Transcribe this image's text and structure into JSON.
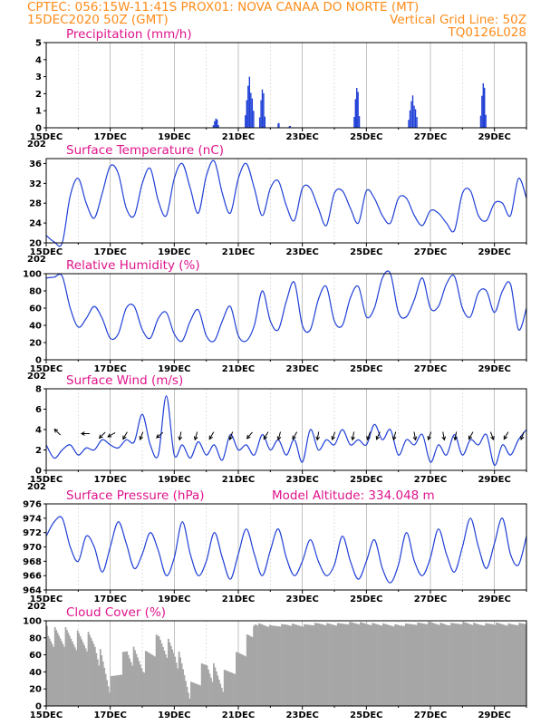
{
  "header": {
    "line1": "CPTEC:  056:15W-11:41S   PROX01: NOVA CANAA DO NORTE (MT)",
    "line2_left": "15DEC2020 50Z (GMT)",
    "line2_right": "Vertical Grid Line: 50Z",
    "line3_right": "TQ0126L028"
  },
  "x_axis": {
    "start_hour_label": "15DEC",
    "tick_labels": [
      "15DEC",
      "17DEC",
      "19DEC",
      "21DEC",
      "23DEC",
      "25DEC",
      "27DEC",
      "29DEC"
    ],
    "year_fragment": "202"
  },
  "colors": {
    "header": "#ff8c1a",
    "title": "#e0148c",
    "line": "#1f3fd6",
    "cloud": "#a6a6a6",
    "arrow": "#000000"
  },
  "chart_data": [
    {
      "type": "bar",
      "title": "Precipitation (mm/h)",
      "ylim": [
        0,
        5
      ],
      "yticks": [
        0,
        1,
        2,
        3,
        4,
        5
      ],
      "days": [
        15,
        30
      ],
      "bursts": [
        {
          "day": 17.0,
          "width": 0.05,
          "peak": 0.1
        },
        {
          "day": 20.3,
          "width": 0.2,
          "peak": 0.6
        },
        {
          "day": 21.35,
          "width": 0.3,
          "peak": 3.0
        },
        {
          "day": 21.75,
          "width": 0.2,
          "peak": 2.5
        },
        {
          "day": 22.25,
          "width": 0.05,
          "peak": 1.0
        },
        {
          "day": 22.6,
          "width": 0.05,
          "peak": 0.4
        },
        {
          "day": 24.7,
          "width": 0.2,
          "peak": 2.6
        },
        {
          "day": 26.45,
          "width": 0.3,
          "peak": 1.9
        },
        {
          "day": 28.65,
          "width": 0.2,
          "peak": 2.9
        }
      ]
    },
    {
      "type": "line",
      "title": "Surface Temperature (nC)",
      "ylim": [
        20,
        37
      ],
      "yticks": [
        20,
        24,
        28,
        32,
        36
      ],
      "x": [
        15.0,
        15.25,
        15.5,
        15.75,
        16.0,
        16.25,
        16.5,
        16.75,
        17.0,
        17.25,
        17.5,
        17.75,
        18.0,
        18.25,
        18.5,
        18.75,
        19.0,
        19.25,
        19.5,
        19.75,
        20.0,
        20.25,
        20.5,
        20.75,
        21.0,
        21.25,
        21.5,
        21.75,
        22.0,
        22.25,
        22.5,
        22.75,
        23.0,
        23.25,
        23.5,
        23.75,
        24.0,
        24.25,
        24.5,
        24.75,
        25.0,
        25.25,
        25.5,
        25.75,
        26.0,
        26.25,
        26.5,
        26.75,
        27.0,
        27.25,
        27.5,
        27.75,
        28.0,
        28.25,
        28.5,
        28.75,
        29.0,
        29.25,
        29.5,
        29.75,
        30.0
      ],
      "values": [
        21.5,
        20.2,
        20.0,
        29.5,
        33.0,
        28.0,
        25.0,
        30.0,
        35.5,
        34.0,
        27.0,
        25.5,
        32.0,
        35.0,
        28.5,
        25.5,
        33.0,
        36.0,
        31.0,
        26.0,
        33.5,
        36.5,
        30.0,
        26.0,
        33.0,
        36.0,
        31.0,
        25.5,
        31.0,
        32.5,
        27.5,
        24.5,
        31.0,
        31.0,
        27.0,
        23.5,
        30.0,
        30.5,
        27.0,
        24.0,
        30.5,
        29.0,
        25.5,
        24.0,
        29.0,
        29.0,
        25.5,
        23.5,
        26.5,
        26.0,
        24.0,
        22.5,
        30.0,
        30.5,
        25.5,
        24.5,
        28.0,
        28.0,
        25.5,
        33.0,
        29.0
      ]
    },
    {
      "type": "line",
      "title": "Relative Humidity (%)",
      "ylim": [
        0,
        100
      ],
      "yticks": [
        0,
        20,
        40,
        60,
        80,
        100
      ],
      "x": [
        15.0,
        15.25,
        15.5,
        15.75,
        16.0,
        16.25,
        16.5,
        16.75,
        17.0,
        17.25,
        17.5,
        17.75,
        18.0,
        18.25,
        18.5,
        18.75,
        19.0,
        19.25,
        19.5,
        19.75,
        20.0,
        20.25,
        20.5,
        20.75,
        21.0,
        21.25,
        21.5,
        21.75,
        22.0,
        22.25,
        22.5,
        22.75,
        23.0,
        23.25,
        23.5,
        23.75,
        24.0,
        24.25,
        24.5,
        24.75,
        25.0,
        25.25,
        25.5,
        25.75,
        26.0,
        26.25,
        26.5,
        26.75,
        27.0,
        27.25,
        27.5,
        27.75,
        28.0,
        28.25,
        28.5,
        28.75,
        29.0,
        29.25,
        29.5,
        29.75,
        30.0
      ],
      "values": [
        95,
        96,
        97,
        60,
        38,
        48,
        62,
        48,
        25,
        30,
        60,
        62,
        35,
        25,
        48,
        55,
        30,
        22,
        45,
        58,
        28,
        22,
        45,
        62,
        28,
        22,
        40,
        80,
        45,
        35,
        68,
        90,
        40,
        35,
        70,
        85,
        45,
        40,
        72,
        85,
        50,
        60,
        95,
        100,
        55,
        50,
        70,
        95,
        60,
        62,
        88,
        97,
        60,
        50,
        78,
        80,
        55,
        80,
        88,
        35,
        60
      ]
    },
    {
      "type": "line",
      "title": "Surface Wind (m/s)",
      "ylim": [
        0,
        8
      ],
      "yticks": [
        0,
        2,
        4,
        6,
        8
      ],
      "x": [
        15.0,
        15.25,
        15.5,
        15.75,
        16.0,
        16.25,
        16.5,
        16.75,
        17.0,
        17.25,
        17.5,
        17.75,
        18.0,
        18.25,
        18.5,
        18.75,
        19.0,
        19.25,
        19.5,
        19.75,
        20.0,
        20.25,
        20.5,
        20.75,
        21.0,
        21.25,
        21.5,
        21.75,
        22.0,
        22.25,
        22.5,
        22.75,
        23.0,
        23.25,
        23.5,
        23.75,
        24.0,
        24.25,
        24.5,
        24.75,
        25.0,
        25.25,
        25.5,
        25.75,
        26.0,
        26.25,
        26.5,
        26.75,
        27.0,
        27.25,
        27.5,
        27.75,
        28.0,
        28.25,
        28.5,
        28.75,
        29.0,
        29.25,
        29.5,
        29.75,
        30.0
      ],
      "values": [
        2.5,
        1.2,
        2.0,
        2.5,
        1.5,
        2.2,
        2.0,
        3.0,
        2.5,
        2.2,
        3.0,
        2.8,
        5.5,
        2.5,
        1.5,
        7.3,
        1.5,
        2.5,
        1.2,
        2.8,
        1.5,
        2.5,
        1.0,
        3.5,
        2.0,
        2.5,
        1.5,
        3.5,
        2.0,
        3.0,
        1.5,
        3.0,
        0.8,
        4.0,
        2.0,
        3.0,
        2.5,
        4.0,
        2.5,
        3.0,
        2.5,
        4.5,
        3.0,
        4.0,
        1.5,
        3.0,
        2.5,
        3.5,
        0.8,
        2.5,
        1.5,
        3.5,
        1.5,
        3.0,
        2.5,
        3.5,
        0.5,
        2.5,
        1.5,
        3.0,
        4.0
      ],
      "arrows": [
        {
          "day": 15.4,
          "dir_deg": 135
        },
        {
          "day": 16.3,
          "dir_deg": 90
        },
        {
          "day": 16.8,
          "dir_deg": 45
        },
        {
          "day": 17.1,
          "dir_deg": 60
        },
        {
          "day": 17.5,
          "dir_deg": 30
        },
        {
          "day": 18.0,
          "dir_deg": 20
        },
        {
          "day": 18.6,
          "dir_deg": 50
        },
        {
          "day": 19.2,
          "dir_deg": 10
        },
        {
          "day": 19.7,
          "dir_deg": 15
        },
        {
          "day": 20.2,
          "dir_deg": 30
        },
        {
          "day": 20.8,
          "dir_deg": 20
        },
        {
          "day": 21.4,
          "dir_deg": 40
        },
        {
          "day": 21.9,
          "dir_deg": 30
        },
        {
          "day": 22.3,
          "dir_deg": 15
        },
        {
          "day": 22.8,
          "dir_deg": 30
        },
        {
          "day": 23.5,
          "dir_deg": 10
        },
        {
          "day": 24.0,
          "dir_deg": 20
        },
        {
          "day": 24.6,
          "dir_deg": 10
        },
        {
          "day": 25.1,
          "dir_deg": 20
        },
        {
          "day": 25.4,
          "dir_deg": 25
        },
        {
          "day": 25.9,
          "dir_deg": 15
        },
        {
          "day": 26.5,
          "dir_deg": 350
        },
        {
          "day": 27.0,
          "dir_deg": 20
        },
        {
          "day": 27.4,
          "dir_deg": 350
        },
        {
          "day": 27.8,
          "dir_deg": 10
        },
        {
          "day": 28.3,
          "dir_deg": 30
        },
        {
          "day": 28.9,
          "dir_deg": 340
        },
        {
          "day": 29.4,
          "dir_deg": 30
        },
        {
          "day": 29.9,
          "dir_deg": 20
        }
      ]
    },
    {
      "type": "line",
      "title": "Surface Pressure (hPa)",
      "annotation": "Model Altitude: 334.048  m",
      "ylim": [
        964,
        976
      ],
      "yticks": [
        964,
        966,
        968,
        970,
        972,
        974,
        976
      ],
      "x": [
        15.0,
        15.25,
        15.5,
        15.75,
        16.0,
        16.25,
        16.5,
        16.75,
        17.0,
        17.25,
        17.5,
        17.75,
        18.0,
        18.25,
        18.5,
        18.75,
        19.0,
        19.25,
        19.5,
        19.75,
        20.0,
        20.25,
        20.5,
        20.75,
        21.0,
        21.25,
        21.5,
        21.75,
        22.0,
        22.25,
        22.5,
        22.75,
        23.0,
        23.25,
        23.5,
        23.75,
        24.0,
        24.25,
        24.5,
        24.75,
        25.0,
        25.25,
        25.5,
        25.75,
        26.0,
        26.25,
        26.5,
        26.75,
        27.0,
        27.25,
        27.5,
        27.75,
        28.0,
        28.25,
        28.5,
        28.75,
        29.0,
        29.25,
        29.5,
        29.75,
        30.0
      ],
      "values": [
        971.5,
        973.5,
        974.0,
        970.0,
        968.0,
        971.5,
        970.0,
        966.5,
        970.0,
        973.5,
        970.5,
        967.0,
        969.0,
        972.0,
        969.5,
        966.0,
        968.5,
        973.5,
        969.0,
        966.0,
        968.0,
        972.0,
        968.5,
        965.5,
        969.0,
        972.5,
        969.0,
        966.0,
        969.5,
        972.5,
        968.5,
        966.0,
        968.0,
        971.0,
        968.0,
        966.0,
        967.5,
        971.5,
        968.0,
        965.5,
        968.0,
        971.0,
        967.0,
        965.0,
        967.5,
        972.0,
        968.0,
        966.0,
        968.5,
        972.5,
        969.0,
        966.5,
        970.0,
        974.0,
        970.0,
        967.0,
        970.5,
        974.0,
        969.0,
        967.5,
        971.5
      ]
    },
    {
      "type": "bar",
      "title": "Cloud Cover (%)",
      "ylim": [
        0,
        100
      ],
      "yticks": [
        0,
        20,
        40,
        60,
        80,
        100
      ],
      "days": [
        15,
        30
      ],
      "x": [
        15.0,
        15.5,
        16.0,
        16.5,
        17.0,
        17.5,
        18.0,
        18.5,
        19.0,
        19.5,
        20.0,
        20.5,
        21.0,
        21.5,
        22.0,
        22.5,
        23.0,
        23.5,
        24.0,
        24.5,
        25.0,
        25.5,
        26.0,
        26.5,
        27.0,
        27.5,
        28.0,
        28.5,
        29.0,
        29.5,
        30.0
      ],
      "values": [
        95,
        93,
        90,
        85,
        35,
        75,
        62,
        88,
        75,
        30,
        60,
        40,
        70,
        98,
        95,
        97,
        96,
        98,
        97,
        99,
        98,
        97,
        96,
        98,
        99,
        97,
        99,
        97,
        98,
        97,
        98
      ]
    }
  ]
}
